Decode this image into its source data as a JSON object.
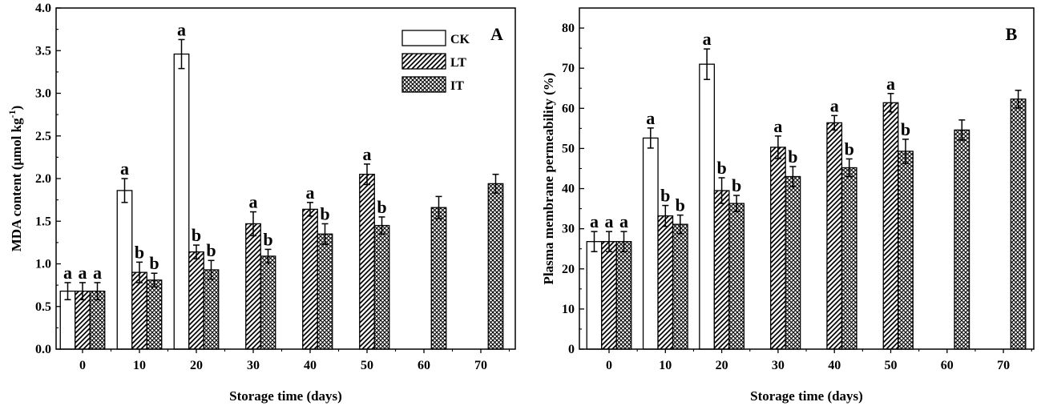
{
  "colors": {
    "axis": "#000000",
    "bar_stroke": "#000000",
    "background": "#ffffff"
  },
  "series_styles": [
    {
      "name": "CK",
      "pattern": "none",
      "fill": "#ffffff"
    },
    {
      "name": "LT",
      "pattern": "diagonal-hatch",
      "fill": "#ffffff"
    },
    {
      "name": "IT",
      "pattern": "cross-hatch",
      "fill": "#ffffff"
    }
  ],
  "chart_data": [
    {
      "type": "bar",
      "panel_label": "A",
      "xlabel": "Storage time (days)",
      "ylabel_main": "MDA content (μmol kg",
      "ylabel_sup": "-1",
      "ylabel_end": ")",
      "categories": [
        "0",
        "10",
        "20",
        "30",
        "40",
        "50",
        "60",
        "70"
      ],
      "ylim": [
        0,
        4.0
      ],
      "yticks": [
        "0.0",
        "0.5",
        "1.0",
        "1.5",
        "2.0",
        "2.5",
        "3.0",
        "3.5",
        "4.0"
      ],
      "legend": {
        "position": "top-right",
        "entries": [
          "CK",
          "LT",
          "IT"
        ]
      },
      "series": [
        {
          "name": "CK",
          "values": [
            0.68,
            1.86,
            3.46,
            null,
            null,
            null,
            null,
            null
          ],
          "errors": [
            0.1,
            0.14,
            0.17,
            null,
            null,
            null,
            null,
            null
          ],
          "labels": [
            "a",
            "a",
            "a",
            null,
            null,
            null,
            null,
            null
          ]
        },
        {
          "name": "LT",
          "values": [
            0.68,
            0.9,
            1.14,
            1.47,
            1.64,
            2.05,
            null,
            null
          ],
          "errors": [
            0.1,
            0.12,
            0.08,
            0.14,
            0.08,
            0.12,
            null,
            null
          ],
          "labels": [
            "a",
            "b",
            "b",
            "a",
            "a",
            "a",
            null,
            null
          ]
        },
        {
          "name": "IT",
          "values": [
            0.68,
            0.81,
            0.93,
            1.09,
            1.35,
            1.45,
            1.66,
            1.94
          ],
          "errors": [
            0.1,
            0.08,
            0.11,
            0.08,
            0.12,
            0.1,
            0.13,
            0.11
          ],
          "labels": [
            "a",
            "b",
            "b",
            "b",
            "b",
            "b",
            null,
            null
          ]
        }
      ]
    },
    {
      "type": "bar",
      "panel_label": "B",
      "xlabel": "Storage time (days)",
      "ylabel_main": "Plasma membrane permeability (%)",
      "ylabel_sup": "",
      "ylabel_end": "",
      "categories": [
        "0",
        "10",
        "20",
        "30",
        "40",
        "50",
        "60",
        "70"
      ],
      "ylim": [
        0,
        85
      ],
      "yticks": [
        "0",
        "10",
        "20",
        "30",
        "40",
        "50",
        "60",
        "70",
        "80"
      ],
      "legend": null,
      "series": [
        {
          "name": "CK",
          "values": [
            26.8,
            52.6,
            71.0,
            null,
            null,
            null,
            null,
            null
          ],
          "errors": [
            2.5,
            2.5,
            3.8,
            null,
            null,
            null,
            null,
            null
          ],
          "labels": [
            "a",
            "a",
            "a",
            null,
            null,
            null,
            null,
            null
          ]
        },
        {
          "name": "LT",
          "values": [
            26.8,
            33.2,
            39.5,
            50.3,
            56.4,
            61.4,
            null,
            null
          ],
          "errors": [
            2.5,
            2.6,
            3.2,
            2.8,
            1.8,
            2.3,
            null,
            null
          ],
          "labels": [
            "a",
            "b",
            "b",
            "a",
            "a",
            "a",
            null,
            null
          ]
        },
        {
          "name": "IT",
          "values": [
            26.8,
            31.1,
            36.3,
            43.0,
            45.2,
            49.3,
            54.6,
            62.3
          ],
          "errors": [
            2.5,
            2.3,
            2.0,
            2.5,
            2.2,
            3.0,
            2.5,
            2.2
          ],
          "labels": [
            "a",
            "b",
            "b",
            "b",
            "b",
            "b",
            null,
            null
          ]
        }
      ]
    }
  ]
}
